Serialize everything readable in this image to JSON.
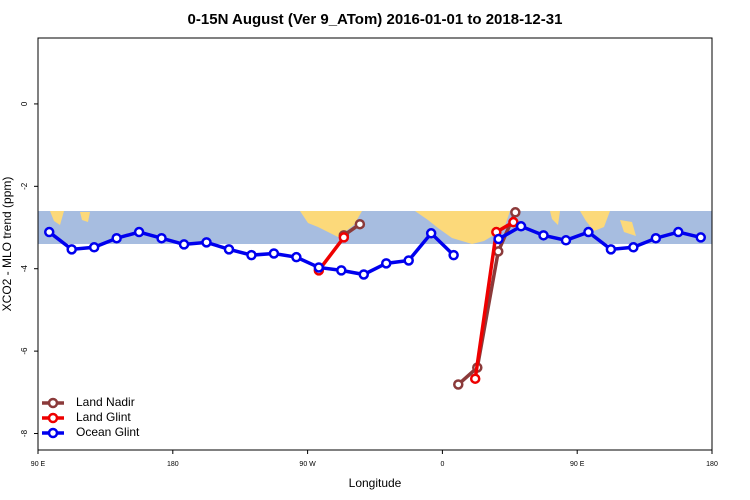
{
  "chart_data": {
    "type": "line",
    "title": "0-15N August (Ver 9_ATom)   2016-01-01 to 2018-12-31",
    "x_label": "Longitude",
    "y_label": "XCO2 - MLO trend (ppm)",
    "xlim": [
      90,
      540
    ],
    "xticks": [
      {
        "value": 90,
        "label": "90 E"
      },
      {
        "value": 180,
        "label": "180"
      },
      {
        "value": 270,
        "label": "90 W"
      },
      {
        "value": 360,
        "label": "0"
      },
      {
        "value": 450,
        "label": "90 E"
      },
      {
        "value": 540,
        "label": "180"
      }
    ],
    "ylim": [
      -8.4,
      1.6
    ],
    "yticks": [
      0,
      -2,
      -4,
      -6,
      -8
    ],
    "legend": "bottom-left",
    "series": [
      {
        "name": "Land Nadir",
        "color": "#8b3a3a",
        "x": [
          294.2,
          304.9,
          null,
          370.6,
          383.3,
          397.3,
          408.7
        ],
        "values": [
          -3.19,
          -2.92,
          null,
          -6.81,
          -6.4,
          -3.58,
          -2.63
        ]
      },
      {
        "name": "Land Glint",
        "color": "#ee0000",
        "x": [
          277.5,
          294.2,
          null,
          381.9,
          396,
          407.4
        ],
        "values": [
          -4.04,
          -3.24,
          null,
          -6.67,
          -3.11,
          -2.87
        ]
      },
      {
        "name": "Ocean Glint",
        "color": "#0000ee",
        "x": [
          97.5,
          112.5,
          127.5,
          142.5,
          157.5,
          172.5,
          187.5,
          202.5,
          217.5,
          232.5,
          247.5,
          262.5,
          277.5,
          292.5,
          307.5,
          322.5,
          337.5,
          352.5,
          367.5,
          null,
          397.5,
          412.5,
          427.5,
          442.5,
          457.5,
          472.5,
          487.5,
          502.5,
          517.5,
          532.5
        ],
        "values": [
          -3.11,
          -3.53,
          -3.48,
          -3.26,
          -3.11,
          -3.26,
          -3.41,
          -3.36,
          -3.53,
          -3.67,
          -3.63,
          -3.72,
          -3.97,
          -4.04,
          -4.14,
          -3.87,
          -3.8,
          -3.14,
          -3.67,
          null,
          -3.28,
          -2.97,
          -3.19,
          -3.31,
          -3.11,
          -3.53,
          -3.48,
          -3.26,
          -3.11,
          -3.24
        ]
      }
    ]
  }
}
